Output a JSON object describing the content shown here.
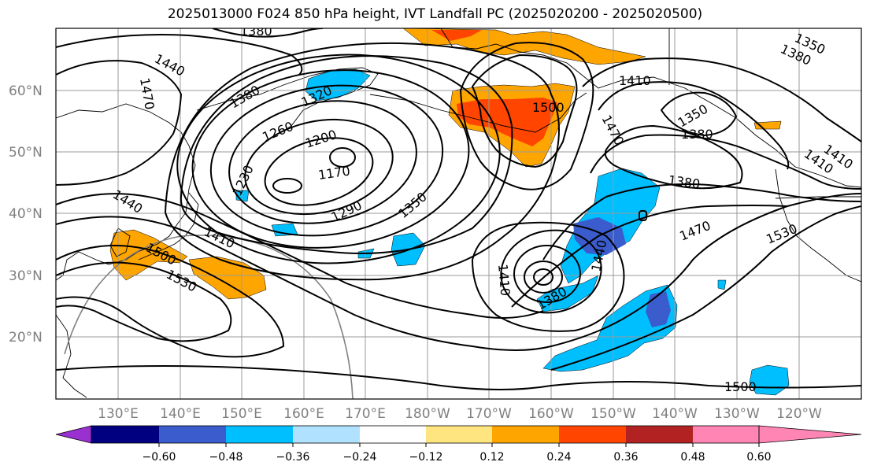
{
  "title": "2025013000 F024 850 hPa height, IVT Landfall PC (2025020200 - 2025020500)",
  "lat_labels": [
    "60°N",
    "50°N",
    "40°N",
    "30°N",
    "20°N"
  ],
  "lon_labels": [
    "130°E",
    "140°E",
    "150°E",
    "160°E",
    "170°E",
    "180°W",
    "170°W",
    "160°W",
    "150°W",
    "140°W",
    "130°W",
    "120°W"
  ],
  "contour_labels": [
    "1380",
    "1440",
    "1470",
    "1380",
    "1320",
    "1260",
    "1200",
    "1170",
    "1230",
    "1290",
    "1350",
    "1440",
    "1410",
    "1500",
    "1530",
    "1500",
    "1410",
    "1470",
    "1350",
    "1380",
    "1380",
    "1470",
    "1530",
    "1410",
    "1380",
    "1440",
    "1410",
    "1500",
    "1350",
    "1380",
    "1410"
  ],
  "colorbar": {
    "colors": [
      "#9b30d0",
      "#000080",
      "#3a5ccc",
      "#00bfff",
      "#b0e2ff",
      "#ffffff",
      "#ffe57f",
      "#ffa500",
      "#ff4500",
      "#b22222",
      "#ff85b4"
    ],
    "tick_labels": [
      "−0.60",
      "−0.48",
      "−0.36",
      "−0.24",
      "−0.12",
      "0.12",
      "0.24",
      "0.36",
      "0.48",
      "0.60"
    ]
  },
  "legend_colors": {
    "contour": "#000000",
    "coastline": "#000000",
    "gridline": "#9a9a9a",
    "range_ring": "#808080"
  }
}
